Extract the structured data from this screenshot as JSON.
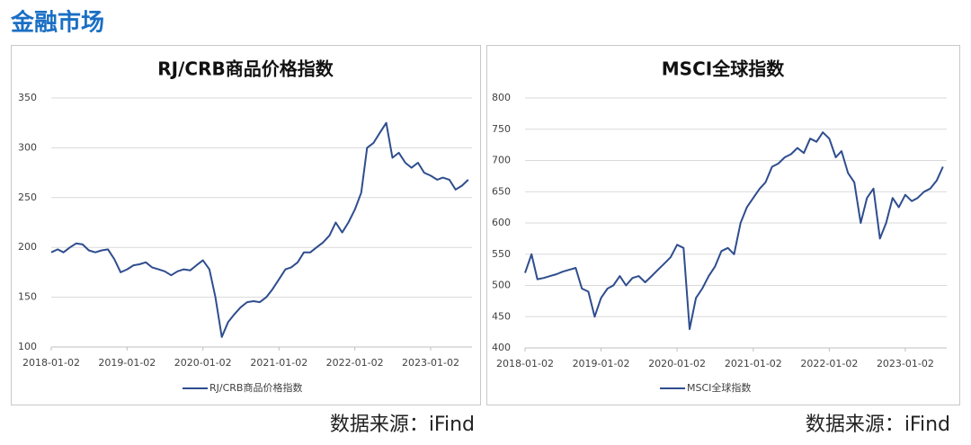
{
  "header": "金融市场",
  "chart_data": [
    {
      "type": "line",
      "title": "RJ/CRB商品价格指数",
      "source": "数据来源：iFind",
      "x": [
        "2018-01-02",
        "2018-02-02",
        "2018-03-02",
        "2018-04-02",
        "2018-05-02",
        "2018-06-02",
        "2018-07-02",
        "2018-08-02",
        "2018-09-02",
        "2018-10-02",
        "2018-11-02",
        "2018-12-02",
        "2019-01-02",
        "2019-02-02",
        "2019-03-02",
        "2019-04-02",
        "2019-05-02",
        "2019-06-02",
        "2019-07-02",
        "2019-08-02",
        "2019-09-02",
        "2019-10-02",
        "2019-11-02",
        "2019-12-02",
        "2020-01-02",
        "2020-02-02",
        "2020-03-02",
        "2020-04-02",
        "2020-05-02",
        "2020-06-02",
        "2020-07-02",
        "2020-08-02",
        "2020-09-02",
        "2020-10-02",
        "2020-11-02",
        "2020-12-02",
        "2021-01-02",
        "2021-02-02",
        "2021-03-02",
        "2021-04-02",
        "2021-05-02",
        "2021-06-02",
        "2021-07-02",
        "2021-08-02",
        "2021-09-02",
        "2021-10-02",
        "2021-11-02",
        "2021-12-02",
        "2022-01-02",
        "2022-02-02",
        "2022-03-02",
        "2022-04-02",
        "2022-05-02",
        "2022-06-02",
        "2022-07-02",
        "2022-08-02",
        "2022-09-02",
        "2022-10-02",
        "2022-11-02",
        "2022-12-02",
        "2023-01-02",
        "2023-02-02",
        "2023-03-02",
        "2023-04-02",
        "2023-05-02",
        "2023-06-02",
        "2023-07-02"
      ],
      "series": [
        {
          "name": "RJ/CRB商品价格指数",
          "color": "#2e4d8e",
          "values": [
            195,
            198,
            195,
            200,
            204,
            203,
            197,
            195,
            197,
            198,
            188,
            175,
            178,
            182,
            183,
            185,
            180,
            178,
            176,
            172,
            176,
            178,
            177,
            182,
            187,
            178,
            150,
            110,
            125,
            133,
            140,
            145,
            146,
            145,
            150,
            158,
            168,
            178,
            180,
            185,
            195,
            195,
            200,
            205,
            212,
            225,
            215,
            225,
            238,
            255,
            300,
            305,
            315,
            325,
            290,
            295,
            285,
            280,
            285,
            275,
            272,
            268,
            270,
            268,
            258,
            262,
            268
          ]
        }
      ],
      "xlim": [
        "2018-01-02",
        "2023-07-20"
      ],
      "xticks": [
        "2018-01-02",
        "2019-01-02",
        "2020-01-02",
        "2021-01-02",
        "2022-01-02",
        "2023-01-02"
      ],
      "ylim": [
        100,
        350
      ],
      "yticks": [
        100,
        150,
        200,
        250,
        300,
        350
      ],
      "grid": true
    },
    {
      "type": "line",
      "title": "MSCI全球指数",
      "source": "数据来源：iFind",
      "x": [
        "2018-01-02",
        "2018-02-02",
        "2018-03-02",
        "2018-04-02",
        "2018-05-02",
        "2018-06-02",
        "2018-07-02",
        "2018-08-02",
        "2018-09-02",
        "2018-10-02",
        "2018-11-02",
        "2018-12-02",
        "2019-01-02",
        "2019-02-02",
        "2019-03-02",
        "2019-04-02",
        "2019-05-02",
        "2019-06-02",
        "2019-07-02",
        "2019-08-02",
        "2019-09-02",
        "2019-10-02",
        "2019-11-02",
        "2019-12-02",
        "2020-01-02",
        "2020-02-02",
        "2020-03-02",
        "2020-04-02",
        "2020-05-02",
        "2020-06-02",
        "2020-07-02",
        "2020-08-02",
        "2020-09-02",
        "2020-10-02",
        "2020-11-02",
        "2020-12-02",
        "2021-01-02",
        "2021-02-02",
        "2021-03-02",
        "2021-04-02",
        "2021-05-02",
        "2021-06-02",
        "2021-07-02",
        "2021-08-02",
        "2021-09-02",
        "2021-10-02",
        "2021-11-02",
        "2021-12-02",
        "2022-01-02",
        "2022-02-02",
        "2022-03-02",
        "2022-04-02",
        "2022-05-02",
        "2022-06-02",
        "2022-07-02",
        "2022-08-02",
        "2022-09-02",
        "2022-10-02",
        "2022-11-02",
        "2022-12-02",
        "2023-01-02",
        "2023-02-02",
        "2023-03-02",
        "2023-04-02",
        "2023-05-02",
        "2023-06-02",
        "2023-07-02"
      ],
      "series": [
        {
          "name": "MSCI全球指数",
          "color": "#2e4d8e",
          "values": [
            520,
            550,
            510,
            512,
            515,
            518,
            522,
            525,
            528,
            495,
            490,
            450,
            480,
            495,
            500,
            515,
            500,
            512,
            515,
            505,
            515,
            525,
            535,
            545,
            565,
            560,
            430,
            480,
            495,
            515,
            530,
            555,
            560,
            550,
            600,
            625,
            640,
            655,
            665,
            690,
            695,
            705,
            710,
            720,
            712,
            735,
            730,
            745,
            735,
            705,
            715,
            680,
            665,
            600,
            640,
            655,
            575,
            600,
            640,
            625,
            645,
            635,
            640,
            650,
            655,
            668,
            690
          ]
        }
      ],
      "xlim": [
        "2018-01-02",
        "2023-07-20"
      ],
      "xticks": [
        "2018-01-02",
        "2019-01-02",
        "2020-01-02",
        "2021-01-02",
        "2022-01-02",
        "2023-01-02"
      ],
      "ylim": [
        400,
        800
      ],
      "yticks": [
        400,
        450,
        500,
        550,
        600,
        650,
        700,
        750,
        800
      ],
      "grid": true
    }
  ]
}
